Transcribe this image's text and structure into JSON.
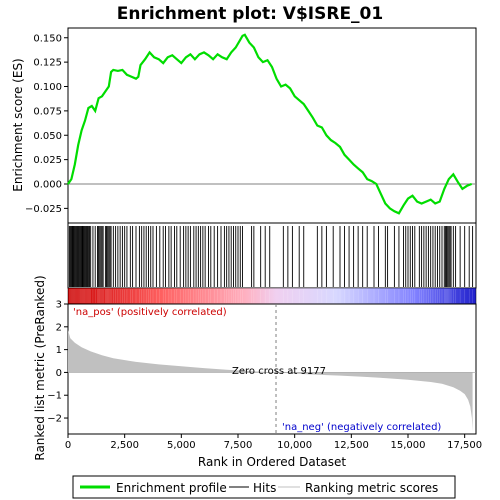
{
  "chart_data": {
    "type": "line",
    "title": "Enrichment plot: V$ISRE_01",
    "top_panel": {
      "ylabel": "Enrichment score (ES)",
      "ylim": [
        -0.04,
        0.16
      ],
      "yticks": [
        -0.025,
        0.0,
        0.025,
        0.05,
        0.075,
        0.1,
        0.125,
        0.15
      ],
      "ytick_labels": [
        "−0.025",
        "0.000",
        "0.025",
        "0.050",
        "0.075",
        "0.100",
        "0.125",
        "0.150"
      ],
      "series": [
        {
          "name": "Enrichment profile",
          "color": "#00dd00",
          "x": [
            0,
            150,
            300,
            450,
            600,
            750,
            900,
            1050,
            1200,
            1350,
            1500,
            1650,
            1800,
            1900,
            2000,
            2200,
            2400,
            2600,
            2800,
            3000,
            3100,
            3200,
            3400,
            3600,
            3800,
            4000,
            4200,
            4400,
            4600,
            4800,
            5000,
            5200,
            5400,
            5600,
            5800,
            6000,
            6200,
            6400,
            6600,
            6800,
            7000,
            7200,
            7400,
            7600,
            7700,
            7800,
            8000,
            8200,
            8400,
            8600,
            8800,
            9000,
            9200,
            9400,
            9600,
            9800,
            10000,
            10200,
            10400,
            10600,
            10800,
            11000,
            11200,
            11400,
            11600,
            11800,
            12000,
            12200,
            12400,
            12600,
            12800,
            13000,
            13200,
            13400,
            13600,
            13800,
            14000,
            14200,
            14400,
            14600,
            14800,
            15000,
            15200,
            15400,
            15600,
            15800,
            16000,
            16200,
            16400,
            16600,
            16800,
            17000,
            17200,
            17400,
            17600,
            17800
          ],
          "values": [
            0.0,
            0.005,
            0.02,
            0.04,
            0.055,
            0.065,
            0.078,
            0.08,
            0.075,
            0.088,
            0.09,
            0.095,
            0.1,
            0.115,
            0.117,
            0.116,
            0.117,
            0.112,
            0.11,
            0.108,
            0.11,
            0.122,
            0.128,
            0.135,
            0.13,
            0.128,
            0.124,
            0.13,
            0.132,
            0.128,
            0.124,
            0.13,
            0.133,
            0.128,
            0.133,
            0.135,
            0.132,
            0.128,
            0.133,
            0.13,
            0.128,
            0.135,
            0.14,
            0.148,
            0.152,
            0.153,
            0.145,
            0.14,
            0.13,
            0.125,
            0.127,
            0.12,
            0.108,
            0.1,
            0.102,
            0.098,
            0.09,
            0.086,
            0.082,
            0.075,
            0.068,
            0.06,
            0.058,
            0.05,
            0.045,
            0.042,
            0.038,
            0.03,
            0.025,
            0.02,
            0.016,
            0.012,
            0.005,
            0.003,
            0.0,
            -0.01,
            -0.02,
            -0.025,
            -0.028,
            -0.03,
            -0.022,
            -0.015,
            -0.012,
            -0.018,
            -0.02,
            -0.018,
            -0.016,
            -0.02,
            -0.018,
            -0.005,
            0.005,
            0.01,
            0.002,
            -0.005,
            -0.002,
            0.0
          ]
        }
      ]
    },
    "hits_panel": {
      "legend_name": "Hits",
      "color": "#000000",
      "hit_ranks": [
        60,
        100,
        140,
        180,
        220,
        260,
        300,
        340,
        380,
        420,
        460,
        500,
        540,
        580,
        620,
        660,
        700,
        740,
        780,
        820,
        860,
        900,
        950,
        1000,
        1100,
        1200,
        1300,
        1350,
        1400,
        1450,
        1500,
        1550,
        1650,
        1700,
        1750,
        1800,
        1850,
        1900,
        2000,
        2100,
        2200,
        2300,
        2400,
        2500,
        2600,
        2750,
        2850,
        3000,
        3150,
        3250,
        3350,
        3450,
        3550,
        3650,
        3750,
        3900,
        4050,
        4200,
        4300,
        4450,
        4550,
        4700,
        4800,
        4950,
        5100,
        5200,
        5300,
        5400,
        5550,
        5650,
        5750,
        5850,
        5950,
        6050,
        6200,
        6300,
        6450,
        6600,
        6750,
        6900,
        7000,
        7100,
        7200,
        7300,
        7400,
        7500,
        7600,
        7700,
        8100,
        8200,
        8500,
        8700,
        8900,
        9500,
        9700,
        9900,
        10200,
        10400,
        11000,
        11200,
        11400,
        11700,
        12000,
        12200,
        12400,
        12600,
        12800,
        13000,
        13200,
        13500,
        13700,
        14000,
        14100,
        14400,
        14600,
        14800,
        14900,
        15000,
        15100,
        15200,
        15300,
        15500,
        15600,
        15700,
        15800,
        15900,
        16000,
        16100,
        16200,
        16300,
        16400,
        16500,
        16600,
        16650,
        16700,
        16750,
        16800,
        16850,
        16900,
        17000,
        17100,
        17300,
        17500,
        17700,
        17850
      ]
    },
    "bottom_panel": {
      "ylabel": "Ranked list metric (PreRanked)",
      "xlabel": "Rank in Ordered Dataset",
      "ylim": [
        -2.7,
        3.0
      ],
      "yticks": [
        -2,
        -1,
        0,
        1,
        2,
        3
      ],
      "ytick_labels": [
        "−2",
        "−1",
        "0",
        "1",
        "2",
        "3"
      ],
      "xlim": [
        0,
        18000
      ],
      "xticks": [
        0,
        2500,
        5000,
        7500,
        10000,
        12500,
        15000,
        17500
      ],
      "xtick_labels": [
        "0",
        "2,500",
        "5,000",
        "7,500",
        "10,000",
        "12,500",
        "15,000",
        "17,500"
      ],
      "metric_x": [
        0,
        100,
        300,
        600,
        1000,
        1500,
        2000,
        3000,
        4000,
        5000,
        6000,
        7000,
        8000,
        9177,
        10000,
        11000,
        12000,
        13000,
        14000,
        15000,
        16000,
        16500,
        17000,
        17300,
        17500,
        17650,
        17750,
        17820,
        17850
      ],
      "metric_values": [
        1.85,
        1.5,
        1.3,
        1.1,
        0.92,
        0.75,
        0.62,
        0.46,
        0.35,
        0.27,
        0.19,
        0.12,
        0.06,
        0.0,
        -0.05,
        -0.1,
        -0.14,
        -0.19,
        -0.25,
        -0.32,
        -0.42,
        -0.5,
        -0.65,
        -0.8,
        -0.95,
        -1.2,
        -1.5,
        -2.0,
        -2.6
      ],
      "metric_color": "#c0c0c0",
      "zero_cross_rank": 9177,
      "annotations": {
        "zero_cross": "Zero cross at 9177",
        "pos": "'na_pos' (positively correlated)",
        "neg": "'na_neg' (negatively correlated)"
      },
      "annotation_colors": {
        "pos": "#cc0000",
        "neg": "#0000cc",
        "zero_cross": "#000000"
      }
    },
    "gradient_colors": [
      "#cc0000",
      "#ff6060",
      "#ffb0c0",
      "#f0d0f0",
      "#d8d8ff",
      "#8080ff",
      "#2020cc"
    ],
    "legend": {
      "placement": "bottom",
      "items": [
        {
          "label": "Enrichment profile",
          "color": "#00dd00",
          "style": "thick-line"
        },
        {
          "label": "Hits",
          "color": "#000000",
          "style": "thin-line"
        },
        {
          "label": "Ranking metric scores",
          "color": "#c0c0c0",
          "style": "thin-line"
        }
      ]
    }
  }
}
